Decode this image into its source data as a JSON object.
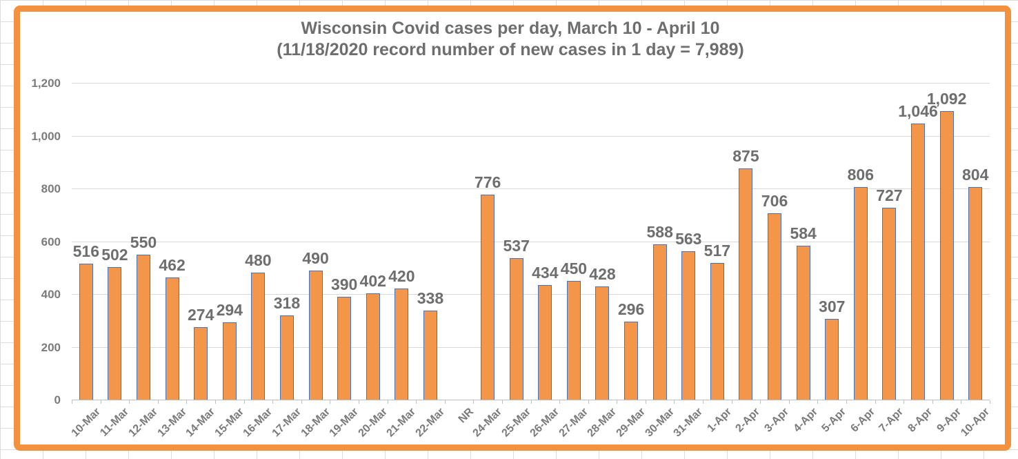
{
  "chart_data": {
    "type": "bar",
    "title": "Wisconsin Covid cases per day, March 10 - April 10",
    "subtitle": "(11/18/2020 record number of new cases in 1 day = 7,989)",
    "categories": [
      "10-Mar",
      "11-Mar",
      "12-Mar",
      "13-Mar",
      "14-Mar",
      "15-Mar",
      "16-Mar",
      "17-Mar",
      "18-Mar",
      "19-Mar",
      "20-Mar",
      "21-Mar",
      "22-Mar",
      "NR",
      "24-Mar",
      "25-Mar",
      "26-Mar",
      "27-Mar",
      "28-Mar",
      "29-Mar",
      "30-Mar",
      "31-Mar",
      "1-Apr",
      "2-Apr",
      "3-Apr",
      "4-Apr",
      "5-Apr",
      "6-Apr",
      "7-Apr",
      "8-Apr",
      "9-Apr",
      "10-Apr"
    ],
    "values": [
      516,
      502,
      550,
      462,
      274,
      294,
      480,
      318,
      490,
      390,
      402,
      420,
      338,
      null,
      776,
      537,
      434,
      450,
      428,
      296,
      588,
      563,
      517,
      875,
      706,
      584,
      307,
      806,
      727,
      1046,
      1092,
      804
    ],
    "value_labels": [
      "516",
      "502",
      "550",
      "462",
      "274",
      "294",
      "480",
      "318",
      "490",
      "390",
      "402",
      "420",
      "338",
      "",
      "776",
      "537",
      "434",
      "450",
      "428",
      "296",
      "588",
      "563",
      "517",
      "875",
      "706",
      "584",
      "307",
      "806",
      "727",
      "1,046",
      "1,092",
      "804"
    ],
    "yticks": [
      {
        "label": "0",
        "value": 0
      },
      {
        "label": "200",
        "value": 200
      },
      {
        "label": "400",
        "value": 400
      },
      {
        "label": "600",
        "value": 600
      },
      {
        "label": "800",
        "value": 800
      },
      {
        "label": "1,000",
        "value": 1000
      },
      {
        "label": "1,200",
        "value": 1200
      }
    ],
    "ylim": [
      0,
      1200
    ],
    "grid": true,
    "legend_position": "none",
    "colors": {
      "bar_fill": "#F4964A",
      "bar_border": "#4472C4",
      "frame_border": "#F4913E",
      "gridline": "#d9d9d9",
      "axis_line": "#bfbfbf",
      "title_text": "#6e6e6e",
      "label_text": "#7b7b7b"
    }
  }
}
